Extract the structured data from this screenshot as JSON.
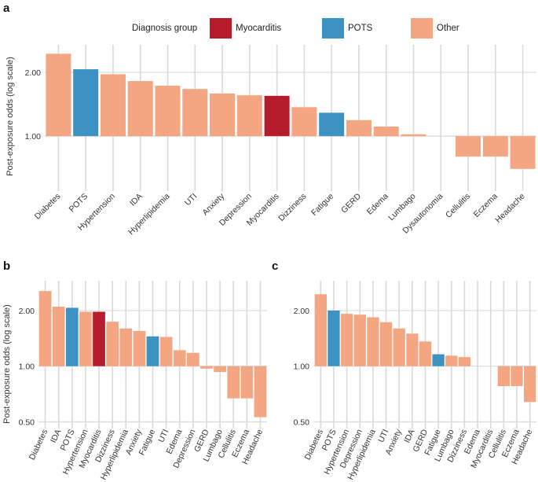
{
  "legend": {
    "title": "Diagnosis group",
    "items": [
      {
        "label": "Myocarditis",
        "color": "#b71c2c"
      },
      {
        "label": "POTS",
        "color": "#3d92c4"
      },
      {
        "label": "Other",
        "color": "#f4a582"
      }
    ]
  },
  "colors": {
    "Myocarditis": "#b71c2c",
    "POTS": "#3d92c4",
    "Other": "#f4a582"
  },
  "chart_data": [
    {
      "panel": "a",
      "type": "bar",
      "scale": "log",
      "ylabel": "Post-exposure odds (log scale)",
      "yticks": [
        1.0,
        2.0
      ],
      "ytick_labels": [
        "1.00",
        "2.00"
      ],
      "ylim": [
        0.55,
        2.7
      ],
      "categories": [
        "Diabetes",
        "POTS",
        "Hypertension",
        "IDA",
        "Hyperlipidemia",
        "UTI",
        "Anxiety",
        "Depression",
        "Myocarditis",
        "Dizziness",
        "Fatigue",
        "GERD",
        "Edema",
        "Lumbago",
        "Dysautonomia",
        "Cellulitis",
        "Eczema",
        "Headache"
      ],
      "values": [
        2.45,
        2.07,
        1.96,
        1.82,
        1.73,
        1.67,
        1.59,
        1.56,
        1.55,
        1.37,
        1.29,
        1.19,
        1.11,
        1.02,
        1.0,
        0.8,
        0.8,
        0.7
      ],
      "groups": [
        "Other",
        "POTS",
        "Other",
        "Other",
        "Other",
        "Other",
        "Other",
        "Other",
        "Myocarditis",
        "Other",
        "POTS",
        "Other",
        "Other",
        "Other",
        "Other",
        "Other",
        "Other",
        "Other"
      ]
    },
    {
      "panel": "b",
      "type": "bar",
      "scale": "log",
      "ylabel": "Post-exposure odds (log scale)",
      "yticks": [
        0.5,
        1.0,
        2.0
      ],
      "ytick_labels": [
        "0.50",
        "1.00",
        "2.00"
      ],
      "ylim": [
        0.46,
        2.9
      ],
      "categories": [
        "Diabetes",
        "IDA",
        "POTS",
        "Hypertension",
        "Myocarditis",
        "Dizziness",
        "Hyperlipidemia",
        "Anxiety",
        "Fatigue",
        "UTI",
        "Edema",
        "Depression",
        "GERD",
        "Lumbago",
        "Cellulitis",
        "Eczema",
        "Headache"
      ],
      "values": [
        2.55,
        2.1,
        2.07,
        1.97,
        1.97,
        1.74,
        1.6,
        1.55,
        1.45,
        1.44,
        1.22,
        1.18,
        0.97,
        0.93,
        0.67,
        0.67,
        0.53
      ],
      "groups": [
        "Other",
        "Other",
        "POTS",
        "Other",
        "Myocarditis",
        "Other",
        "Other",
        "Other",
        "POTS",
        "Other",
        "Other",
        "Other",
        "Other",
        "Other",
        "Other",
        "Other",
        "Other"
      ]
    },
    {
      "panel": "c",
      "type": "bar",
      "scale": "log",
      "ylabel": "",
      "yticks": [
        0.5,
        1.0,
        2.0
      ],
      "ytick_labels": [
        "0.50",
        "1.00",
        "2.00"
      ],
      "ylim": [
        0.46,
        2.9
      ],
      "categories": [
        "Diabetes",
        "POTS",
        "Hypertension",
        "Depression",
        "Hyperlipidemia",
        "UTI",
        "Anxiety",
        "IDA",
        "GERD",
        "Fatigue",
        "Lumbago",
        "Dizziness",
        "Edema",
        "Myocarditis",
        "Cellulitis",
        "Eczema",
        "Headache"
      ],
      "values": [
        2.45,
        2.0,
        1.92,
        1.9,
        1.84,
        1.73,
        1.6,
        1.5,
        1.36,
        1.16,
        1.14,
        1.12,
        1.0,
        1.0,
        0.78,
        0.78,
        0.64
      ],
      "groups": [
        "Other",
        "POTS",
        "Other",
        "Other",
        "Other",
        "Other",
        "Other",
        "Other",
        "Other",
        "POTS",
        "Other",
        "Other",
        "Other",
        "Other",
        "Other",
        "Other",
        "Other"
      ]
    }
  ]
}
